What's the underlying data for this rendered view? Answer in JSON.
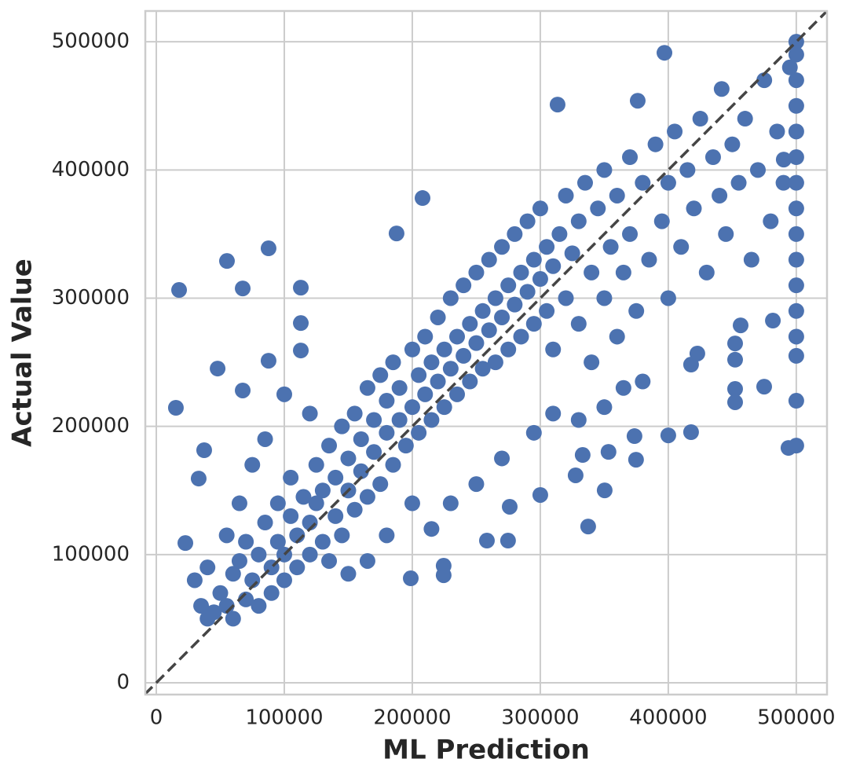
{
  "chart_data": {
    "type": "scatter",
    "x_label": "ML Prediction",
    "y_label": "Actual Value",
    "color": "#4c72b0",
    "grid": true,
    "xlim": [
      -8600,
      524000
    ],
    "ylim": [
      -9200,
      524000
    ],
    "xticks": [
      0,
      100000,
      200000,
      300000,
      400000,
      500000
    ],
    "yticks": [
      0,
      100000,
      200000,
      300000,
      400000,
      500000
    ],
    "x": [
      17800,
      15300,
      55200,
      67500,
      87700,
      87700,
      47900,
      67500,
      22700,
      33100,
      37400,
      112900,
      112900,
      112900,
      187700,
      208000,
      397000,
      313500,
      376100,
      441700,
      490200,
      198800,
      224500,
      224500,
      258300,
      274800,
      337400,
      350300,
      400000,
      417800,
      276100,
      300000,
      327600,
      333100,
      353300,
      374800,
      373600,
      417800,
      422700,
      452200,
      452200,
      452200,
      452200,
      456500,
      474900,
      481700,
      493900,
      45000,
      50000,
      55000,
      60000,
      60000,
      65000,
      70000,
      70000,
      75000,
      80000,
      80000,
      85000,
      90000,
      90000,
      95000,
      95000,
      100000,
      100000,
      105000,
      105000,
      110000,
      110000,
      115000,
      120000,
      120000,
      125000,
      125000,
      130000,
      130000,
      135000,
      140000,
      140000,
      145000,
      145000,
      150000,
      150000,
      155000,
      155000,
      160000,
      160000,
      165000,
      165000,
      170000,
      170000,
      175000,
      175000,
      180000,
      180000,
      185000,
      185000,
      190000,
      190000,
      195000,
      200000,
      200000,
      205000,
      205000,
      210000,
      210000,
      215000,
      215000,
      220000,
      220000,
      225000,
      225000,
      230000,
      230000,
      235000,
      235000,
      240000,
      240000,
      245000,
      245000,
      250000,
      250000,
      255000,
      255000,
      260000,
      260000,
      265000,
      265000,
      270000,
      270000,
      275000,
      275000,
      280000,
      280000,
      285000,
      285000,
      290000,
      290000,
      295000,
      295000,
      300000,
      300000,
      305000,
      305000,
      310000,
      310000,
      315000,
      320000,
      320000,
      325000,
      330000,
      330000,
      335000,
      340000,
      340000,
      345000,
      350000,
      350000,
      355000,
      360000,
      360000,
      365000,
      370000,
      370000,
      375000,
      380000,
      385000,
      390000,
      395000,
      400000,
      400000,
      405000,
      410000,
      415000,
      420000,
      425000,
      430000,
      435000,
      440000,
      445000,
      450000,
      455000,
      460000,
      465000,
      470000,
      475000,
      480000,
      485000,
      490000,
      495000,
      30000,
      35000,
      40000,
      40000,
      55000,
      65000,
      75000,
      85000,
      100000,
      120000,
      135000,
      150000,
      165000,
      180000,
      200000,
      215000,
      230000,
      250000,
      270000,
      295000,
      310000,
      330000,
      350000,
      365000,
      380000,
      500001,
      500001,
      500001,
      500001,
      500001,
      500001,
      500001,
      500001,
      500001,
      500001,
      500001,
      500001,
      500001,
      500001,
      500001,
      500001
    ],
    "values": [
      306400,
      214500,
      329000,
      307600,
      338900,
      251200,
      245100,
      228000,
      109000,
      159300,
      181400,
      308200,
      280600,
      259200,
      350500,
      378100,
      491400,
      451000,
      454000,
      463200,
      408100,
      81500,
      83900,
      91300,
      110900,
      110900,
      121900,
      150100,
      193000,
      195500,
      137300,
      146500,
      161800,
      177700,
      180100,
      174000,
      192400,
      248200,
      256800,
      264700,
      252000,
      229200,
      218800,
      278800,
      231000,
      282500,
      183200,
      55000,
      70000,
      60000,
      85000,
      50000,
      95000,
      65000,
      110000,
      80000,
      100000,
      60000,
      125000,
      90000,
      70000,
      110000,
      140000,
      100000,
      80000,
      130000,
      160000,
      115000,
      90000,
      145000,
      125000,
      100000,
      170000,
      140000,
      110000,
      150000,
      185000,
      130000,
      160000,
      200000,
      115000,
      150000,
      175000,
      210000,
      135000,
      165000,
      190000,
      230000,
      145000,
      180000,
      205000,
      155000,
      240000,
      195000,
      220000,
      170000,
      250000,
      205000,
      230000,
      185000,
      215000,
      260000,
      195000,
      240000,
      225000,
      270000,
      205000,
      250000,
      235000,
      285000,
      215000,
      260000,
      245000,
      300000,
      225000,
      270000,
      255000,
      310000,
      235000,
      280000,
      265000,
      320000,
      245000,
      290000,
      275000,
      330000,
      250000,
      300000,
      285000,
      340000,
      260000,
      310000,
      295000,
      350000,
      270000,
      320000,
      305000,
      360000,
      280000,
      330000,
      315000,
      370000,
      290000,
      340000,
      325000,
      260000,
      350000,
      300000,
      380000,
      335000,
      280000,
      360000,
      390000,
      320000,
      250000,
      370000,
      300000,
      400000,
      340000,
      270000,
      380000,
      320000,
      410000,
      350000,
      290000,
      390000,
      330000,
      420000,
      360000,
      300000,
      390000,
      430000,
      340000,
      400000,
      370000,
      440000,
      320000,
      410000,
      380000,
      350000,
      420000,
      390000,
      440000,
      330000,
      400000,
      470000,
      360000,
      430000,
      390000,
      480000,
      80000,
      60000,
      90000,
      50000,
      115000,
      140000,
      170000,
      190000,
      225000,
      210000,
      95000,
      85000,
      95000,
      115000,
      140000,
      120000,
      140000,
      155000,
      175000,
      195000,
      210000,
      205000,
      215000,
      230000,
      235000,
      185000,
      220000,
      255000,
      270000,
      290000,
      310000,
      330000,
      350000,
      370000,
      390000,
      410000,
      430000,
      450000,
      470000,
      490000,
      500000
    ]
  }
}
